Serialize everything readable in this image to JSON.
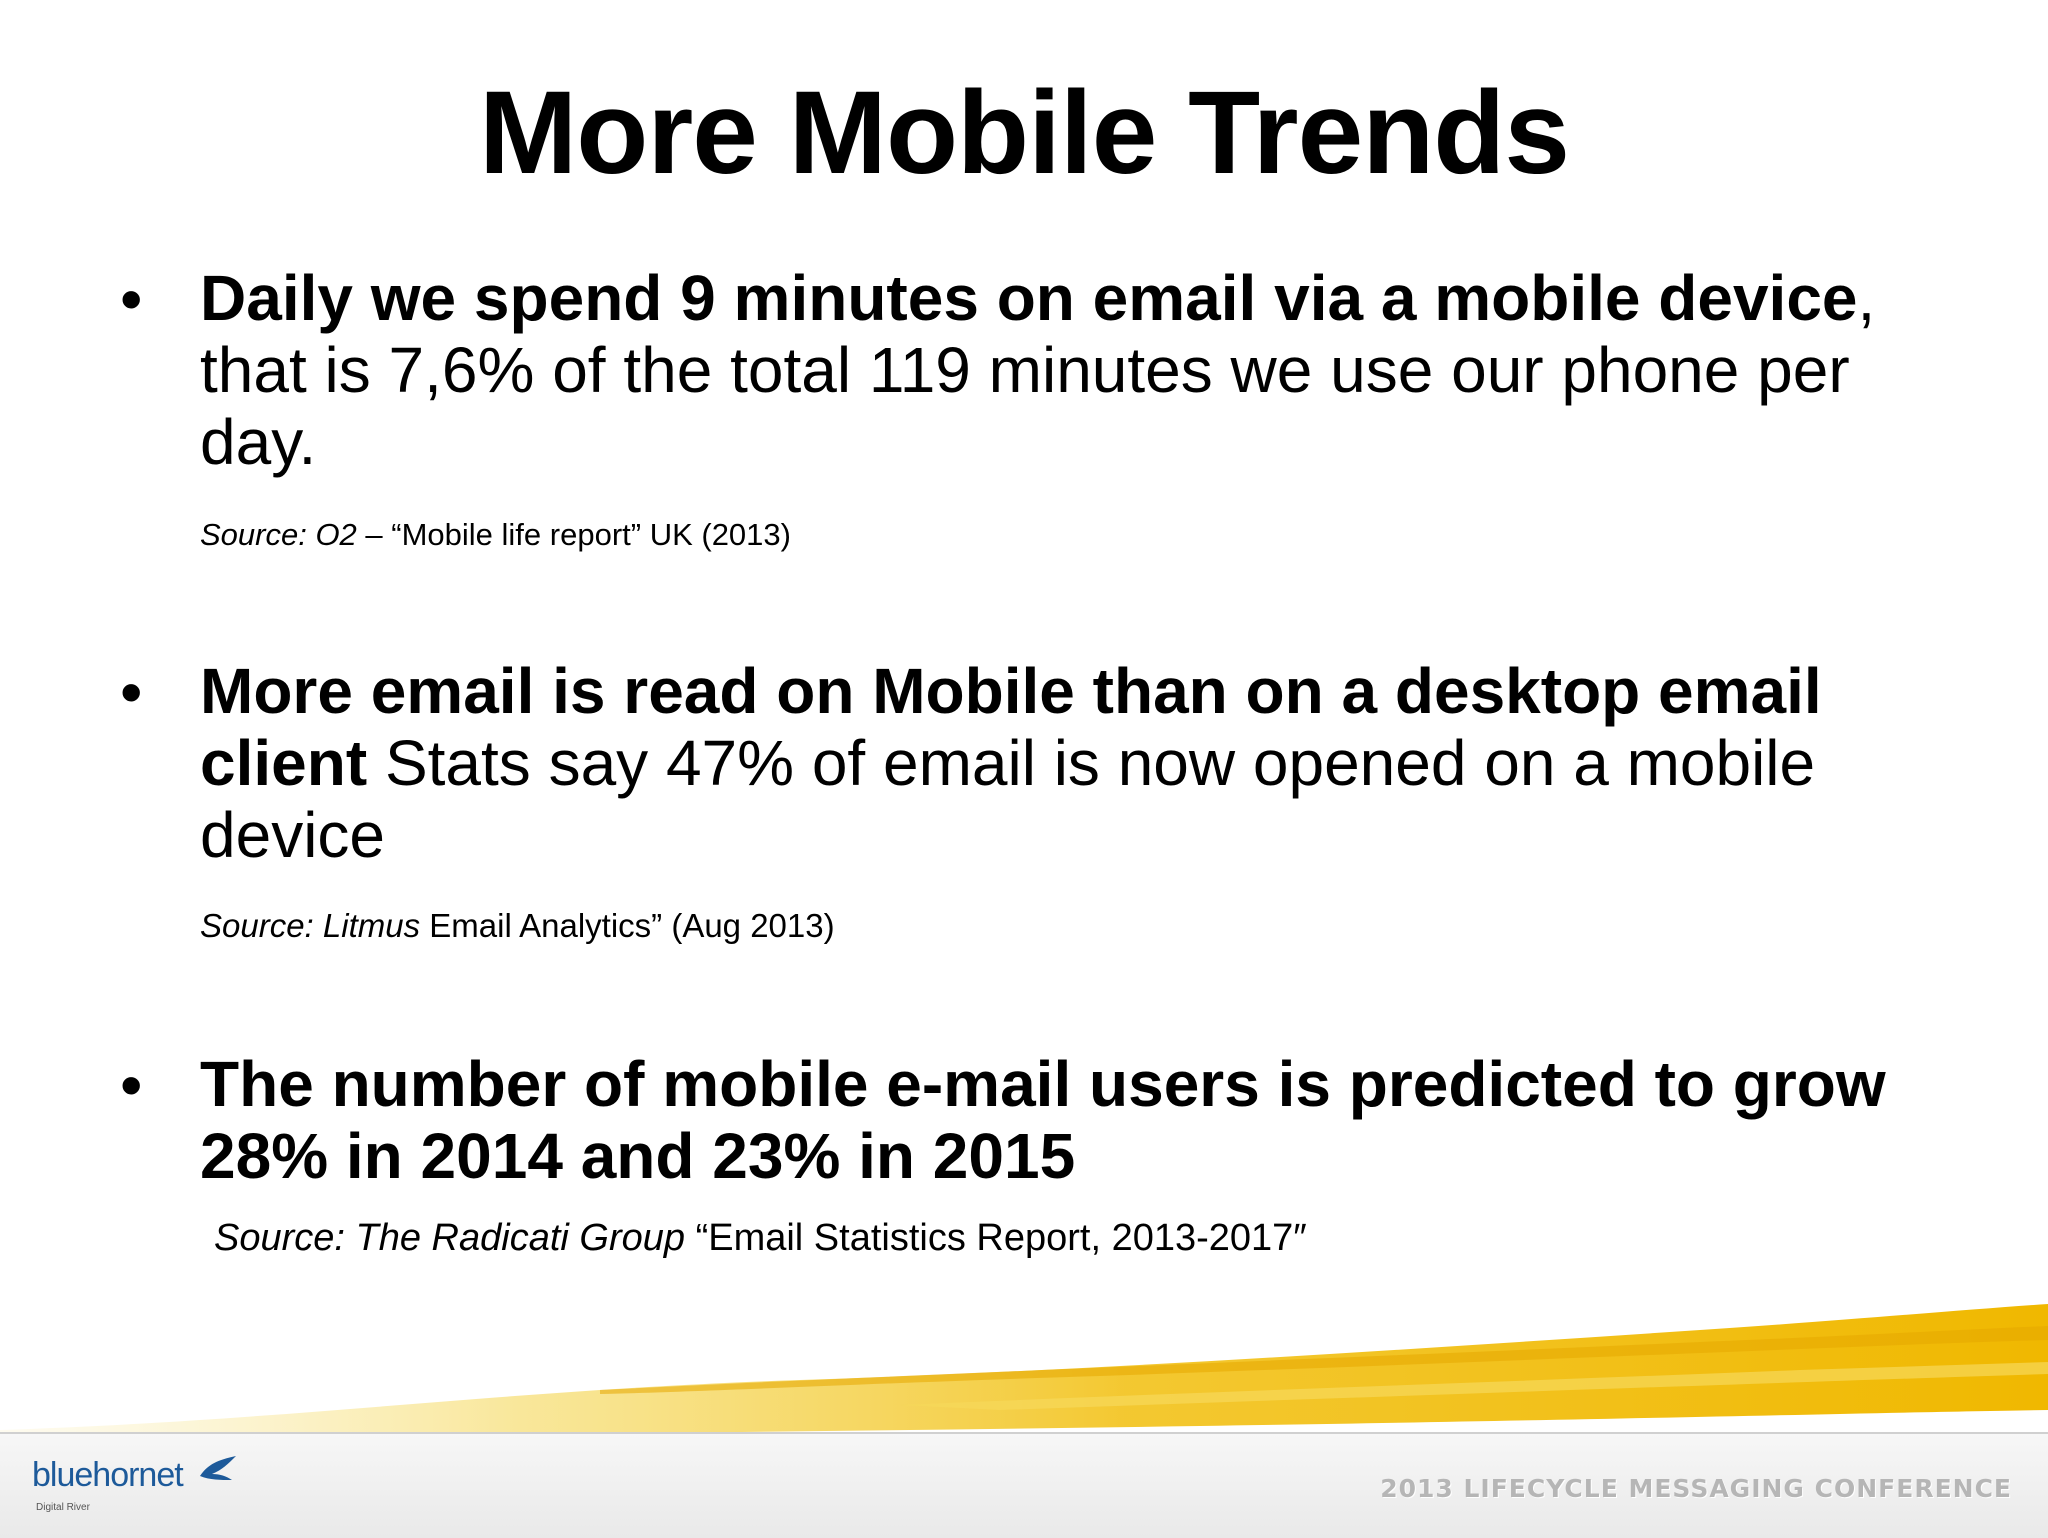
{
  "slide": {
    "title": "More Mobile Trends",
    "bullets": [
      {
        "marker": "•",
        "bold": "Daily we spend 9 minutes on email via a mobile device",
        "rest": ", that is 7,6% of the total 119 minutes we use our phone per day.",
        "source_italic": "Source: O2",
        "source_rest": " – “Mobile life report” UK (2013)"
      },
      {
        "marker": "•",
        "bold": "More email is read on Mobile than on a desktop email client",
        "rest": " Stats say 47% of email is now opened on a mobile device",
        "source_italic": "Source: Litmus",
        "source_rest": " Email Analytics” (Aug 2013)"
      },
      {
        "marker": "•",
        "bold": "The number of mobile e-mail users is predicted to grow 28% in 2014 and 23% in 2015",
        "rest": "",
        "source_italic": "Source: The Radicati Group",
        "source_rest": " “Email Statistics Report, 2013-2017″"
      }
    ]
  },
  "footer": {
    "logo_text": "bluehornet",
    "logo_subtext": "Digital River",
    "conference": "2013 LIFECYCLE  MESSAGING CONFERENCE"
  },
  "colors": {
    "brush": "#f2c21a",
    "logo": "#1d5a9a",
    "conference_text": "#b6b6b6"
  }
}
